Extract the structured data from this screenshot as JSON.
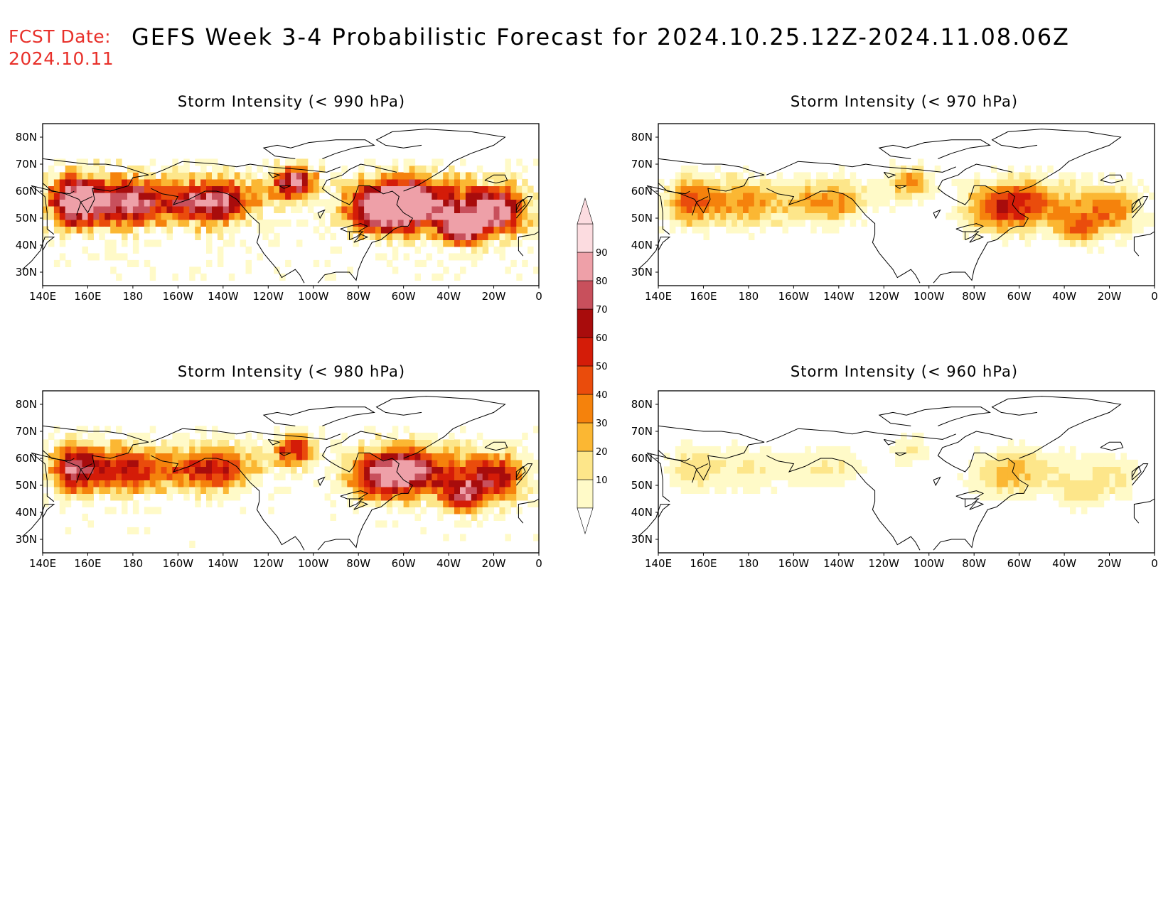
{
  "header": {
    "fcst_label": "FCST Date:",
    "fcst_date": "2024.10.11",
    "title": "GEFS Week 3-4 Probabilistic Forecast for 2024.10.25.12Z-2024.11.08.06Z"
  },
  "axes": {
    "lon_ticks": [
      "140E",
      "160E",
      "180",
      "160W",
      "140W",
      "120W",
      "100W",
      "80W",
      "60W",
      "40W",
      "20W",
      "0"
    ],
    "lat_ticks": [
      "80N",
      "70N",
      "60N",
      "50N",
      "40N",
      "30N"
    ]
  },
  "colorbar": {
    "levels": [
      "10",
      "20",
      "30",
      "40",
      "50",
      "60",
      "70",
      "80",
      "90"
    ],
    "colors": [
      "#fffac8",
      "#fde68a",
      "#fbb733",
      "#f5820c",
      "#ea4c0c",
      "#d41c08",
      "#a80c0c",
      "#c8505c",
      "#eea0a8",
      "#fcdce0"
    ]
  },
  "panels": [
    {
      "id": "p990",
      "title": "Storm Intensity (< 990 hPa)",
      "intensity": 1.0
    },
    {
      "id": "p970",
      "title": "Storm Intensity (< 970 hPa)",
      "intensity": 0.45
    },
    {
      "id": "p980",
      "title": "Storm Intensity (< 980 hPa)",
      "intensity": 0.72
    },
    {
      "id": "p960",
      "title": "Storm Intensity (< 960 hPa)",
      "intensity": 0.22
    }
  ]
}
